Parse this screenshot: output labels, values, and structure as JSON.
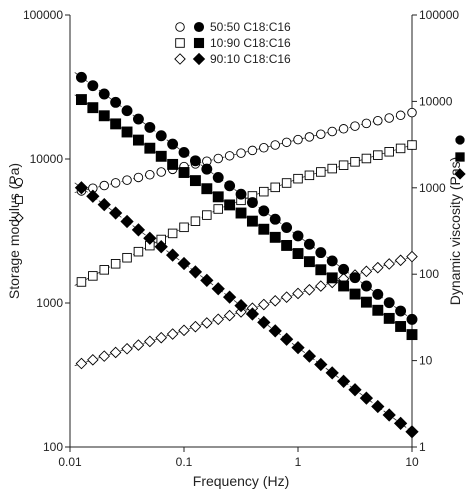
{
  "chart_data": {
    "type": "scatter",
    "xlabel": "Frequency (Hz)",
    "ylabel_left": "Storage modulus (Pa)",
    "ylabel_right": "Dynamic viscosity (Pas)",
    "x_scale": "log",
    "y_left_scale": "log",
    "y_right_scale": "log",
    "xlim": [
      0.01,
      10
    ],
    "ylim_left": [
      100,
      100000
    ],
    "ylim_right": [
      1,
      100000
    ],
    "x_ticks": [
      "0.01",
      "0.1",
      "1",
      "10"
    ],
    "y_left_ticks": [
      "100",
      "1000",
      "10000",
      "100000"
    ],
    "y_right_ticks": [
      "1",
      "10",
      "100",
      "1000",
      "10000",
      "100000"
    ],
    "grid": false,
    "legend_position": "top-center",
    "legend": [
      {
        "label": "50:50 C18:C16",
        "open_marker": "circle",
        "filled_marker": "circle"
      },
      {
        "label": "10:90 C18:C16",
        "open_marker": "square",
        "filled_marker": "square"
      },
      {
        "label": "90:10 C18:C16",
        "open_marker": "diamond",
        "filled_marker": "diamond"
      }
    ],
    "series": [
      {
        "group": "50:50 C18:C16",
        "quantity": "storage modulus",
        "axis": "left",
        "marker": "circle",
        "filled": false,
        "x": [
          0.0126,
          10
        ],
        "y": [
          6000,
          21000
        ]
      },
      {
        "group": "10:90 C18:C16",
        "quantity": "storage modulus",
        "axis": "left",
        "marker": "square",
        "filled": false,
        "x": [
          0.0126,
          0.05,
          0.2,
          1,
          10
        ],
        "y": [
          1400,
          2500,
          4500,
          7300,
          12500
        ]
      },
      {
        "group": "90:10 C18:C16",
        "quantity": "storage modulus",
        "axis": "left",
        "marker": "diamond",
        "filled": false,
        "x": [
          0.0126,
          10
        ],
        "y": [
          380,
          2100
        ]
      },
      {
        "group": "50:50 C18:C16",
        "quantity": "dynamic viscosity",
        "axis": "right",
        "marker": "circle",
        "filled": true,
        "x": [
          0.0126,
          10
        ],
        "y": [
          19000,
          30
        ]
      },
      {
        "group": "10:90 C18:C16",
        "quantity": "dynamic viscosity",
        "axis": "right",
        "marker": "square",
        "filled": true,
        "x": [
          0.0126,
          10
        ],
        "y": [
          10500,
          20
        ]
      },
      {
        "group": "90:10 C18:C16",
        "quantity": "dynamic viscosity",
        "axis": "right",
        "marker": "diamond",
        "filled": true,
        "x": [
          0.0126,
          10
        ],
        "y": [
          1000,
          1.5
        ]
      }
    ]
  }
}
